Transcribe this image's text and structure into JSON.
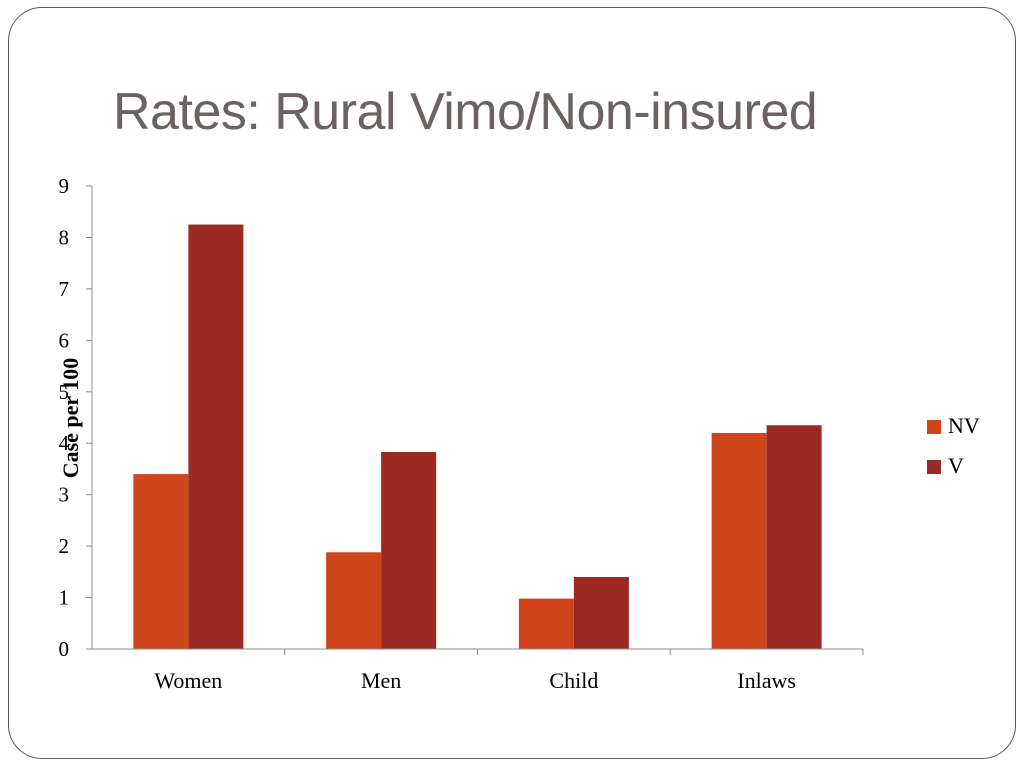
{
  "slide": {
    "title": "Rates: Rural Vimo/Non-insured"
  },
  "colors": {
    "NV": "#d0461c",
    "V": "#9b2b22",
    "axis": "#8c8c8c",
    "border": "#5a5a5a",
    "title": "#6b6361"
  },
  "chart_data": {
    "type": "bar",
    "title": "",
    "xlabel": "",
    "ylabel": "Case per 100",
    "ylim": [
      0,
      9
    ],
    "yticks": [
      0,
      1,
      2,
      3,
      4,
      5,
      6,
      7,
      8,
      9
    ],
    "categories": [
      "Women",
      "Men",
      "Child",
      "Inlaws"
    ],
    "series": [
      {
        "name": "NV",
        "values": [
          3.4,
          1.88,
          0.98,
          4.2
        ]
      },
      {
        "name": "V",
        "values": [
          8.25,
          3.83,
          1.4,
          4.35
        ]
      }
    ],
    "grid": false,
    "legend": "right"
  }
}
